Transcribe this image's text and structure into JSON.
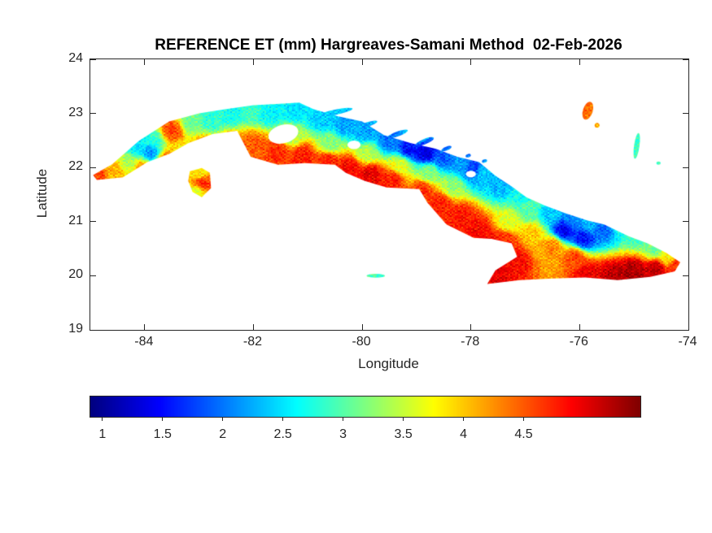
{
  "chart_data": {
    "type": "heatmap",
    "title": "REFERENCE ET (mm) Hargreaves-Samani Method  02-Feb-2026",
    "xlabel": "Longitude",
    "ylabel": "Latitude",
    "region": "Cuba",
    "units": "mm",
    "xlim": [
      -85,
      -74
    ],
    "ylim": [
      19,
      24
    ],
    "xticks": [
      -84,
      -82,
      -80,
      -78,
      -76,
      -74
    ],
    "xtick_labels": [
      "-84",
      "-82",
      "-80",
      "-78",
      "-76",
      "-74"
    ],
    "yticks": [
      19,
      20,
      21,
      22,
      23,
      24
    ],
    "ytick_labels": [
      "19",
      "20",
      "21",
      "22",
      "23",
      "24"
    ],
    "grid": false,
    "colormap": "jet",
    "colorbar": {
      "orientation": "horizontal",
      "range": [
        0.9,
        5.47
      ],
      "ticks": [
        1,
        1.5,
        2,
        2.5,
        3,
        3.5,
        4,
        4.5
      ],
      "tick_labels": [
        "1",
        "1.5",
        "2",
        "2.5",
        "3",
        "3.5",
        "4",
        "4.5"
      ]
    },
    "point_format": "[longitude_deg, latitude_deg, reference_et_mm]",
    "sample_points": [
      [
        -84.88,
        21.86,
        4.6
      ],
      [
        -84.55,
        21.95,
        4.1
      ],
      [
        -84.3,
        22.1,
        3.4
      ],
      [
        -84.15,
        22.38,
        2.5
      ],
      [
        -83.9,
        22.28,
        2.1
      ],
      [
        -84.05,
        22.0,
        4.2
      ],
      [
        -83.6,
        22.12,
        4.5
      ],
      [
        -83.3,
        22.3,
        3.8
      ],
      [
        -83.5,
        22.68,
        4.6
      ],
      [
        -83.85,
        22.5,
        2.8
      ],
      [
        -83.15,
        22.85,
        3.1
      ],
      [
        -82.75,
        22.88,
        2.8
      ],
      [
        -82.4,
        23.0,
        2.7
      ],
      [
        -82.05,
        23.08,
        2.9
      ],
      [
        -82.9,
        22.35,
        4.4
      ],
      [
        -82.45,
        22.42,
        4.6
      ],
      [
        -82.0,
        22.42,
        4.5
      ],
      [
        -81.55,
        22.3,
        4.7
      ],
      [
        -81.1,
        22.22,
        4.8
      ],
      [
        -80.65,
        22.12,
        4.8
      ],
      [
        -80.25,
        22.0,
        4.9
      ],
      [
        -79.85,
        21.88,
        5.0
      ],
      [
        -79.45,
        21.78,
        4.8
      ],
      [
        -81.7,
        23.02,
        2.6
      ],
      [
        -81.25,
        23.05,
        2.5
      ],
      [
        -80.75,
        22.9,
        2.4
      ],
      [
        -80.35,
        22.8,
        2.2
      ],
      [
        -79.95,
        22.65,
        2.2
      ],
      [
        -79.55,
        22.5,
        2.0
      ],
      [
        -79.15,
        22.35,
        1.5
      ],
      [
        -78.85,
        22.28,
        1.3
      ],
      [
        -78.5,
        22.18,
        1.9
      ],
      [
        -78.15,
        22.05,
        2.2
      ],
      [
        -81.3,
        22.6,
        3.4
      ],
      [
        -80.6,
        22.45,
        3.2
      ],
      [
        -79.9,
        22.28,
        3.4
      ],
      [
        -79.3,
        22.05,
        3.6
      ],
      [
        -78.8,
        21.9,
        3.2
      ],
      [
        -78.35,
        21.65,
        3.3
      ],
      [
        -77.8,
        21.9,
        2.4
      ],
      [
        -77.45,
        21.68,
        2.3
      ],
      [
        -77.1,
        21.48,
        2.7
      ],
      [
        -77.95,
        22.0,
        1.7
      ],
      [
        -78.9,
        21.6,
        4.7
      ],
      [
        -78.55,
        21.35,
        4.8
      ],
      [
        -78.2,
        21.1,
        4.8
      ],
      [
        -77.9,
        20.85,
        4.9
      ],
      [
        -77.6,
        20.6,
        4.9
      ],
      [
        -77.6,
        20.05,
        5.0
      ],
      [
        -77.2,
        20.3,
        4.9
      ],
      [
        -77.35,
        20.65,
        4.7
      ],
      [
        -76.95,
        21.2,
        3.0
      ],
      [
        -76.55,
        21.15,
        2.4
      ],
      [
        -76.15,
        21.05,
        2.1
      ],
      [
        -75.85,
        20.98,
        2.3
      ],
      [
        -76.3,
        20.85,
        1.4
      ],
      [
        -75.95,
        20.7,
        1.5
      ],
      [
        -75.55,
        20.88,
        1.9
      ],
      [
        -76.9,
        20.8,
        4.0
      ],
      [
        -76.5,
        20.55,
        4.3
      ],
      [
        -76.1,
        20.35,
        4.6
      ],
      [
        -77.3,
        21.0,
        3.6
      ],
      [
        -75.3,
        20.95,
        2.7
      ],
      [
        -74.95,
        20.75,
        2.9
      ],
      [
        -74.62,
        20.5,
        3.1
      ],
      [
        -74.4,
        20.35,
        3.8
      ],
      [
        -75.85,
        20.05,
        5.0
      ],
      [
        -75.4,
        20.0,
        5.2
      ],
      [
        -75.0,
        20.08,
        5.3
      ],
      [
        -74.6,
        20.15,
        5.2
      ],
      [
        -74.25,
        20.18,
        4.7
      ],
      [
        -83.0,
        21.9,
        3.8
      ],
      [
        -82.95,
        21.72,
        4.8
      ],
      [
        -83.05,
        21.55,
        3.6
      ],
      [
        -75.85,
        23.05,
        4.4
      ],
      [
        -75.68,
        22.8,
        4.1
      ],
      [
        -74.95,
        22.4,
        2.9
      ],
      [
        -79.75,
        20.02,
        2.9
      ],
      [
        -80.5,
        23.03,
        2.4
      ],
      [
        -79.0,
        22.62,
        2.5
      ]
    ],
    "outlines": {
      "mainland": [
        [
          -84.95,
          21.86
        ],
        [
          -84.6,
          22.06
        ],
        [
          -84.1,
          22.5
        ],
        [
          -83.55,
          22.85
        ],
        [
          -83.0,
          23.0
        ],
        [
          -82.5,
          23.08
        ],
        [
          -82.0,
          23.15
        ],
        [
          -81.45,
          23.18
        ],
        [
          -81.16,
          23.2
        ],
        [
          -80.9,
          23.08
        ],
        [
          -80.45,
          22.95
        ],
        [
          -80.0,
          22.85
        ],
        [
          -79.6,
          22.6
        ],
        [
          -79.1,
          22.45
        ],
        [
          -78.65,
          22.35
        ],
        [
          -78.25,
          22.2
        ],
        [
          -77.85,
          22.1
        ],
        [
          -77.55,
          21.85
        ],
        [
          -77.25,
          21.65
        ],
        [
          -76.98,
          21.45
        ],
        [
          -76.65,
          21.3
        ],
        [
          -76.25,
          21.15
        ],
        [
          -75.85,
          21.02
        ],
        [
          -75.55,
          20.95
        ],
        [
          -75.1,
          20.73
        ],
        [
          -74.75,
          20.6
        ],
        [
          -74.4,
          20.42
        ],
        [
          -74.15,
          20.25
        ],
        [
          -74.25,
          20.08
        ],
        [
          -74.7,
          19.98
        ],
        [
          -75.3,
          19.92
        ],
        [
          -75.9,
          19.97
        ],
        [
          -76.5,
          19.95
        ],
        [
          -77.1,
          19.92
        ],
        [
          -77.7,
          19.85
        ],
        [
          -77.55,
          20.1
        ],
        [
          -77.15,
          20.35
        ],
        [
          -77.25,
          20.6
        ],
        [
          -77.62,
          20.68
        ],
        [
          -77.95,
          20.7
        ],
        [
          -78.45,
          20.95
        ],
        [
          -78.8,
          21.35
        ],
        [
          -78.95,
          21.6
        ],
        [
          -79.55,
          21.63
        ],
        [
          -79.95,
          21.75
        ],
        [
          -80.3,
          21.9
        ],
        [
          -80.5,
          22.05
        ],
        [
          -81.05,
          22.08
        ],
        [
          -81.55,
          22.05
        ],
        [
          -82.05,
          22.2
        ],
        [
          -82.3,
          22.68
        ],
        [
          -82.75,
          22.62
        ],
        [
          -83.2,
          22.45
        ],
        [
          -83.55,
          22.25
        ],
        [
          -83.95,
          22.1
        ],
        [
          -84.4,
          21.82
        ],
        [
          -84.88,
          21.77
        ]
      ],
      "isla_de_la_juventud": [
        [
          -83.17,
          21.93
        ],
        [
          -82.95,
          21.99
        ],
        [
          -82.8,
          21.9
        ],
        [
          -82.78,
          21.62
        ],
        [
          -82.95,
          21.45
        ],
        [
          -83.12,
          21.55
        ],
        [
          -83.2,
          21.75
        ]
      ]
    },
    "fragment_format": "[center_lon, center_lat, rx_deg, ry_deg, rotation_deg]",
    "fragments": [
      [
        -80.5,
        23.02,
        0.33,
        0.05,
        -12
      ],
      [
        -79.95,
        22.78,
        0.24,
        0.045,
        -18
      ],
      [
        -79.35,
        22.62,
        0.2,
        0.045,
        -20
      ],
      [
        -78.85,
        22.48,
        0.18,
        0.05,
        -22
      ],
      [
        -78.45,
        22.35,
        0.1,
        0.035,
        -22
      ],
      [
        -78.05,
        22.22,
        0.05,
        0.03,
        -20
      ],
      [
        -77.75,
        22.12,
        0.05,
        0.03,
        -20
      ],
      [
        -75.85,
        23.05,
        0.09,
        0.17,
        18
      ],
      [
        -75.68,
        22.78,
        0.045,
        0.045,
        0
      ],
      [
        -74.95,
        22.4,
        0.05,
        0.24,
        8
      ],
      [
        -79.75,
        20.0,
        0.17,
        0.035,
        0
      ],
      [
        -74.55,
        22.08,
        0.04,
        0.03,
        0
      ]
    ],
    "cloud_gaps": [
      [
        -81.45,
        22.62,
        0.28,
        0.17,
        -15
      ],
      [
        -80.15,
        22.42,
        0.12,
        0.08,
        0
      ],
      [
        -78.0,
        21.88,
        0.09,
        0.06,
        0
      ]
    ]
  },
  "axes": {
    "tick_color": "#262626",
    "box_color": "#262626",
    "background": "#ffffff"
  }
}
